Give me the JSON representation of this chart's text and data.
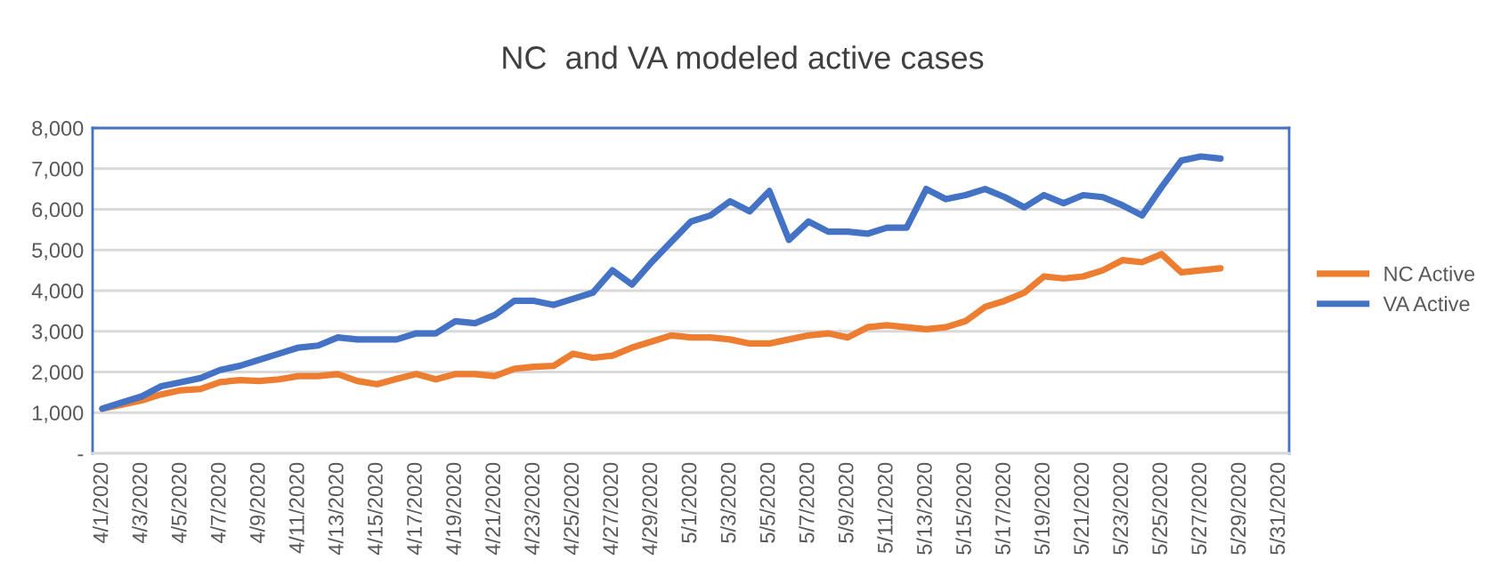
{
  "chart_data": {
    "type": "line",
    "title": "NC  and VA modeled active cases",
    "categories": [
      "4/1/2020",
      null,
      "4/3/2020",
      null,
      "4/5/2020",
      null,
      "4/7/2020",
      null,
      "4/9/2020",
      null,
      "4/11/2020",
      null,
      "4/13/2020",
      null,
      "4/15/2020",
      null,
      "4/17/2020",
      null,
      "4/19/2020",
      null,
      "4/21/2020",
      null,
      "4/23/2020",
      null,
      "4/25/2020",
      null,
      "4/27/2020",
      null,
      "4/29/2020",
      null,
      "5/1/2020",
      null,
      "5/3/2020",
      null,
      "5/5/2020",
      null,
      "5/7/2020",
      null,
      "5/9/2020",
      null,
      "5/11/2020",
      null,
      "5/13/2020",
      null,
      "5/15/2020",
      null,
      "5/17/2020",
      null,
      "5/19/2020",
      null,
      "5/21/2020",
      null,
      "5/23/2020",
      null,
      "5/25/2020",
      null,
      "5/27/2020",
      null,
      "5/29/2020",
      null,
      "5/31/2020"
    ],
    "series": [
      {
        "name": "NC Active",
        "color": "#ed7d31",
        "values": [
          1100,
          1200,
          1300,
          1450,
          1550,
          1580,
          1750,
          1800,
          1780,
          1820,
          1900,
          1900,
          1950,
          1780,
          1700,
          1830,
          1950,
          1820,
          1950,
          1950,
          1900,
          2080,
          2130,
          2150,
          2450,
          2350,
          2400,
          2600,
          2750,
          2900,
          2850,
          2850,
          2800,
          2700,
          2700,
          2800,
          2900,
          2950,
          2850,
          3100,
          3150,
          3100,
          3050,
          3100,
          3250,
          3600,
          3750,
          3950,
          4350,
          4300,
          4350,
          4500,
          4750,
          4700,
          4900,
          4450,
          4500,
          4550,
          null,
          null,
          null
        ]
      },
      {
        "name": "VA Active",
        "color": "#4472c4",
        "values": [
          1100,
          1250,
          1400,
          1650,
          1750,
          1850,
          2050,
          2150,
          2300,
          2450,
          2600,
          2650,
          2850,
          2800,
          2800,
          2800,
          2950,
          2950,
          3250,
          3200,
          3400,
          3750,
          3750,
          3650,
          3800,
          3950,
          4500,
          4150,
          4700,
          5200,
          5700,
          5850,
          6200,
          5950,
          6450,
          5250,
          5700,
          5450,
          5450,
          5400,
          5550,
          5550,
          6500,
          6250,
          6350,
          6500,
          6300,
          6050,
          6350,
          6150,
          6350,
          6300,
          6100,
          5850,
          6550,
          7200,
          7300,
          7250,
          null,
          null,
          null
        ]
      }
    ],
    "ylim": [
      0,
      8000
    ],
    "yticks": [
      {
        "value": 0,
        "label": "-"
      },
      {
        "value": 1000,
        "label": "1,000"
      },
      {
        "value": 2000,
        "label": "2,000"
      },
      {
        "value": 3000,
        "label": "3,000"
      },
      {
        "value": 4000,
        "label": "4,000"
      },
      {
        "value": 5000,
        "label": "5,000"
      },
      {
        "value": 6000,
        "label": "6,000"
      },
      {
        "value": 7000,
        "label": "7,000"
      },
      {
        "value": 8000,
        "label": "8,000"
      }
    ],
    "grid": "y",
    "legend": "right",
    "marker": "none",
    "line_style": "solid"
  }
}
